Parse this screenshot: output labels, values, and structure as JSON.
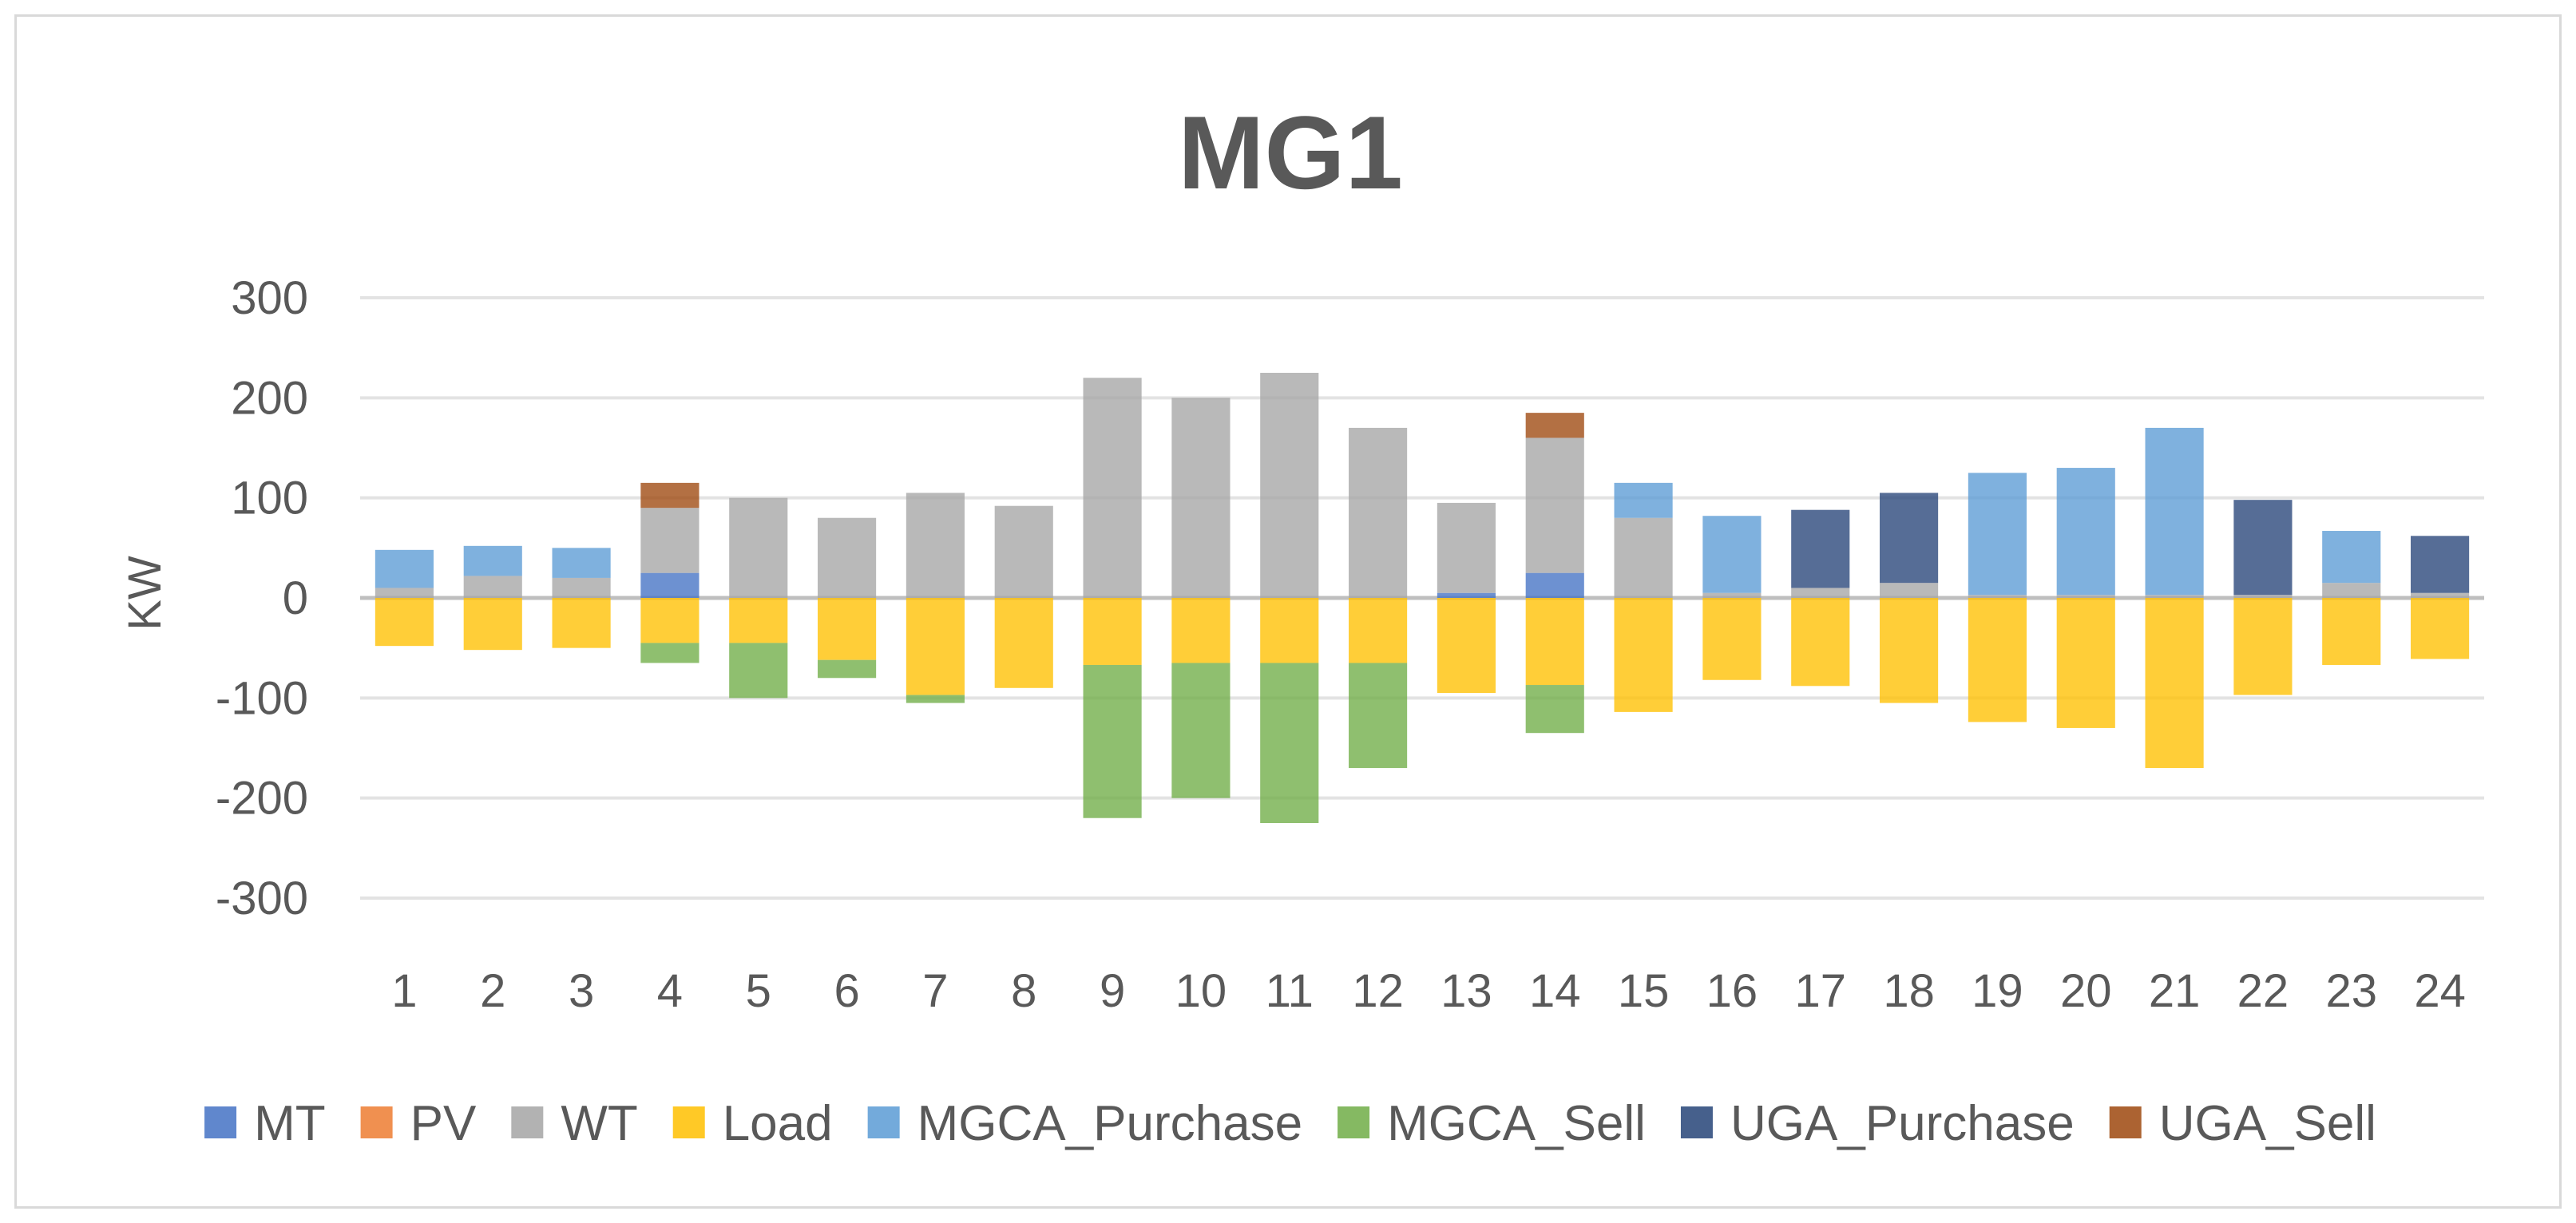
{
  "chart_data": {
    "type": "bar",
    "stacked": true,
    "title": "MG1",
    "xlabel": "",
    "ylabel": "KW",
    "ylim": [
      -300,
      300
    ],
    "yticks": [
      300,
      200,
      100,
      0,
      -100,
      -200,
      -300
    ],
    "grid": true,
    "legend_position": "bottom",
    "categories": [
      "1",
      "2",
      "3",
      "4",
      "5",
      "6",
      "7",
      "8",
      "9",
      "10",
      "11",
      "12",
      "13",
      "14",
      "15",
      "16",
      "17",
      "18",
      "19",
      "20",
      "21",
      "22",
      "23",
      "24"
    ],
    "series": [
      {
        "name": "MT",
        "color": "#4472c4",
        "values": [
          0,
          0,
          0,
          25,
          0,
          0,
          0,
          0,
          0,
          0,
          0,
          0,
          5,
          25,
          0,
          0,
          0,
          0,
          0,
          0,
          0,
          0,
          0,
          0
        ]
      },
      {
        "name": "PV",
        "color": "#ed7d31",
        "values": [
          0,
          0,
          0,
          0,
          0,
          0,
          0,
          0,
          0,
          0,
          0,
          0,
          0,
          0,
          0,
          0,
          0,
          0,
          0,
          0,
          0,
          0,
          0,
          0
        ]
      },
      {
        "name": "WT",
        "color": "#a5a5a5",
        "values": [
          10,
          22,
          20,
          65,
          100,
          80,
          105,
          92,
          220,
          200,
          225,
          170,
          90,
          135,
          80,
          5,
          10,
          15,
          3,
          3,
          3,
          3,
          15,
          5
        ]
      },
      {
        "name": "Load",
        "color": "#ffc000",
        "values": [
          -48,
          -52,
          -50,
          -45,
          -45,
          -62,
          -97,
          -90,
          -67,
          -65,
          -65,
          -65,
          -95,
          -87,
          -114,
          -82,
          -88,
          -105,
          -124,
          -130,
          -170,
          -97,
          -67,
          -61
        ]
      },
      {
        "name": "MGCA_Purchase",
        "color": "#5b9bd5",
        "values": [
          38,
          30,
          30,
          0,
          0,
          0,
          0,
          0,
          0,
          0,
          0,
          0,
          0,
          0,
          35,
          77,
          0,
          0,
          122,
          127,
          167,
          0,
          52,
          0
        ]
      },
      {
        "name": "MGCA_Sell",
        "color": "#70ad47",
        "values": [
          0,
          0,
          0,
          -20,
          -55,
          -18,
          -8,
          0,
          -153,
          -135,
          -160,
          -105,
          0,
          -48,
          0,
          0,
          0,
          0,
          0,
          0,
          0,
          0,
          0,
          0
        ]
      },
      {
        "name": "UGA_Purchase",
        "color": "#264478",
        "values": [
          0,
          0,
          0,
          0,
          0,
          0,
          0,
          0,
          0,
          0,
          0,
          0,
          0,
          0,
          0,
          0,
          78,
          90,
          0,
          0,
          0,
          95,
          0,
          57
        ]
      },
      {
        "name": "UGA_Sell",
        "color": "#9e480e",
        "values": [
          0,
          0,
          0,
          25,
          0,
          0,
          0,
          0,
          0,
          0,
          0,
          0,
          0,
          25,
          0,
          0,
          0,
          0,
          0,
          0,
          0,
          0,
          0,
          0
        ]
      }
    ]
  }
}
